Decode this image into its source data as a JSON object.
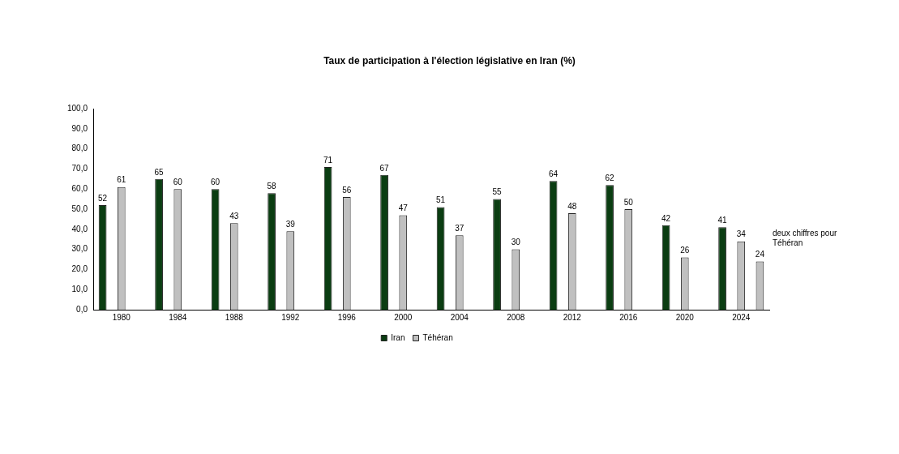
{
  "chart_data": {
    "type": "bar",
    "title": "Taux de participation à l'élection législative en Iran (%)",
    "categories": [
      "1980",
      "1984",
      "1988",
      "1992",
      "1996",
      "2000",
      "2004",
      "2008",
      "2012",
      "2016",
      "2020",
      "2024"
    ],
    "series": [
      {
        "name": "Iran",
        "color": "#0b3d12",
        "values": [
          52,
          65,
          60,
          58,
          71,
          67,
          51,
          55,
          64,
          62,
          42,
          41
        ]
      },
      {
        "name": "Téhéran",
        "color": "#c0c0c0",
        "values": [
          61,
          60,
          43,
          39,
          56,
          47,
          37,
          30,
          48,
          50,
          26,
          34
        ]
      },
      {
        "color": "#c0c0c0",
        "values": [
          null,
          null,
          null,
          null,
          null,
          null,
          null,
          null,
          null,
          null,
          null,
          24
        ]
      }
    ],
    "ylim": [
      0,
      100
    ],
    "yticks": [
      {
        "value": 0,
        "label": "0,0"
      },
      {
        "value": 10,
        "label": "10,0"
      },
      {
        "value": 20,
        "label": "20,0"
      },
      {
        "value": 30,
        "label": "30,0"
      },
      {
        "value": 40,
        "label": "40,0"
      },
      {
        "value": 50,
        "label": "50,0"
      },
      {
        "value": 60,
        "label": "60,0"
      },
      {
        "value": 70,
        "label": "70,0"
      },
      {
        "value": 80,
        "label": "80,0"
      },
      {
        "value": 90,
        "label": "90,0"
      },
      {
        "value": 100,
        "label": "100,0"
      }
    ],
    "grid": false,
    "legend": "bottom",
    "data_labels": true,
    "annotations": [
      "deux chiffres pour Téhéran"
    ]
  }
}
